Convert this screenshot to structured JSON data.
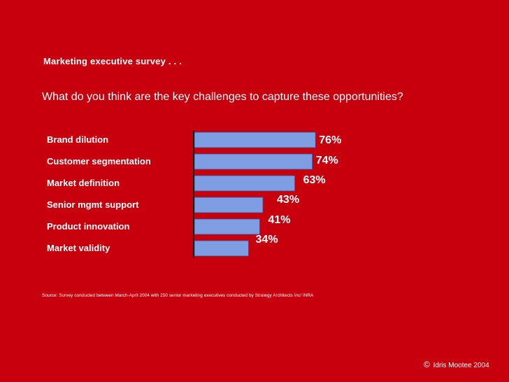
{
  "header": {
    "subtitle": "Marketing executive survey . . .",
    "question": "What do you think are the key challenges to capture these opportunities?"
  },
  "chart_data": {
    "type": "bar",
    "orientation": "horizontal",
    "title": "What do you think are the key challenges to capture these opportunities?",
    "categories": [
      "Brand dilution",
      "Customer segmentation",
      "Market definition",
      "Senior mgmt support",
      "Product innovation",
      "Market validity"
    ],
    "values": [
      76,
      74,
      63,
      43,
      41,
      34
    ],
    "value_labels": [
      "76%",
      "74%",
      "63%",
      "43%",
      "41%",
      "34%"
    ],
    "xlim": [
      0,
      100
    ],
    "xlabel": "",
    "ylabel": "",
    "grid": false,
    "bar_color": "#7f9de3"
  },
  "footer": {
    "source": "Source: Survey conducted between March-April 2004 with 250 senior marketing executives conducted by Strategy Architects Inc/ INRA",
    "copyright_symbol": "©",
    "copyright": "Idris Mootee 2004"
  },
  "colors": {
    "background": "#c8000e",
    "bar": "#7f9de3",
    "text": "#ffffff"
  }
}
